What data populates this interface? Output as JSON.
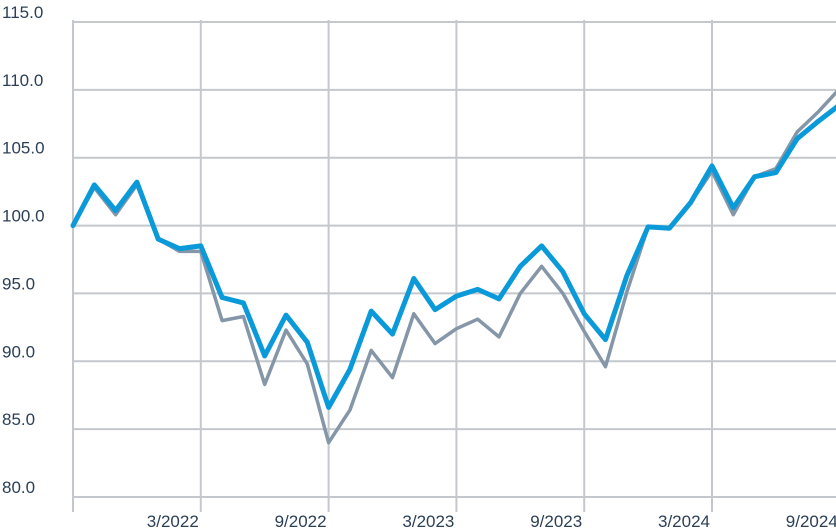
{
  "chart_data": {
    "type": "line",
    "title": "",
    "xlabel": "",
    "ylabel": "",
    "ylim": [
      80,
      115
    ],
    "yticks": [
      "80.0",
      "85.0",
      "90.0",
      "95.0",
      "100.0",
      "105.0",
      "110.0",
      "115.0"
    ],
    "xticks": [
      "3/2022",
      "9/2022",
      "3/2023",
      "9/2023",
      "3/2024",
      "9/2024"
    ],
    "grid": true,
    "legend": "none",
    "x": [
      "9/2021",
      "10/2021",
      "11/2021",
      "12/2021",
      "1/2022",
      "2/2022",
      "3/2022",
      "4/2022",
      "5/2022",
      "6/2022",
      "7/2022",
      "8/2022",
      "9/2022",
      "10/2022",
      "11/2022",
      "12/2022",
      "1/2023",
      "2/2023",
      "3/2023",
      "4/2023",
      "5/2023",
      "6/2023",
      "7/2023",
      "8/2023",
      "9/2023",
      "10/2023",
      "11/2023",
      "12/2023",
      "1/2024",
      "2/2024",
      "3/2024",
      "4/2024",
      "5/2024",
      "6/2024",
      "7/2024",
      "8/2024",
      "9/2024"
    ],
    "series": [
      {
        "color": "#0a9ad9",
        "values": [
          100.0,
          103.0,
          101.1,
          103.2,
          99.0,
          98.3,
          98.5,
          94.7,
          94.3,
          90.4,
          93.4,
          91.4,
          86.6,
          89.4,
          93.7,
          92.0,
          96.1,
          93.8,
          94.8,
          95.3,
          94.6,
          97.0,
          98.5,
          96.6,
          93.5,
          91.6,
          96.3,
          99.9,
          99.8,
          101.7,
          104.4,
          101.3,
          103.6,
          103.9,
          106.4,
          107.7,
          108.9
        ]
      },
      {
        "color": "#8496a7",
        "values": [
          100.0,
          102.8,
          100.8,
          103.0,
          99.0,
          98.1,
          98.1,
          93.0,
          93.3,
          88.3,
          92.3,
          89.8,
          84.0,
          86.4,
          90.8,
          88.8,
          93.5,
          91.3,
          92.4,
          93.1,
          91.8,
          95.0,
          97.0,
          95.0,
          92.2,
          89.6,
          95.1,
          99.9,
          99.8,
          101.7,
          104.0,
          100.8,
          103.6,
          104.2,
          106.9,
          108.4,
          110.1
        ]
      }
    ]
  }
}
